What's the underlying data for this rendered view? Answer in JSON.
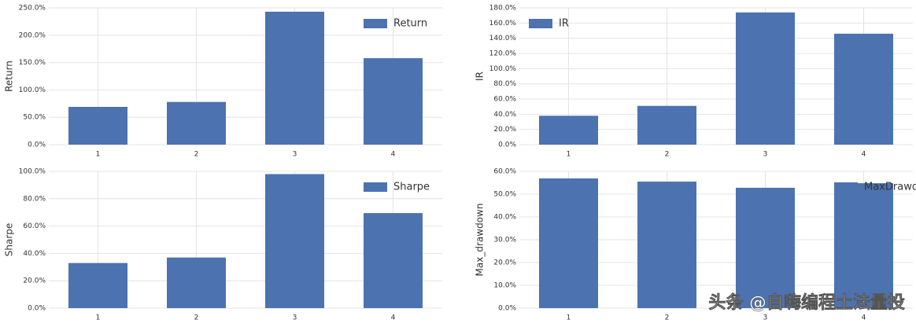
{
  "chart_data": [
    {
      "type": "bar",
      "ylabel": "Return",
      "categories": [
        "1",
        "2",
        "3",
        "4"
      ],
      "series": [
        {
          "name": "Return",
          "color": "#4c72b0",
          "values": [
            69,
            78,
            243,
            158
          ]
        }
      ],
      "ylim": [
        0,
        250
      ],
      "yticks": [
        {
          "value": 0,
          "label": "0.0%"
        },
        {
          "value": 50,
          "label": "50.0%"
        },
        {
          "value": 100,
          "label": "100.0%"
        },
        {
          "value": 150,
          "label": "150.0%"
        },
        {
          "value": 200,
          "label": "200.0%"
        },
        {
          "value": 250,
          "label": "250.0%"
        }
      ],
      "grid": true,
      "legend": "upper right"
    },
    {
      "type": "bar",
      "ylabel": "IR",
      "categories": [
        "1",
        "2",
        "3",
        "4"
      ],
      "series": [
        {
          "name": "IR",
          "color": "#4c72b0",
          "values": [
            38,
            51,
            174,
            146
          ]
        }
      ],
      "ylim": [
        0,
        180
      ],
      "yticks": [
        {
          "value": 0,
          "label": "0.0%"
        },
        {
          "value": 20,
          "label": "20.0%"
        },
        {
          "value": 40,
          "label": "40.0%"
        },
        {
          "value": 60,
          "label": "60.0%"
        },
        {
          "value": 80,
          "label": "80.0%"
        },
        {
          "value": 100,
          "label": "100.0%"
        },
        {
          "value": 120,
          "label": "120.0%"
        },
        {
          "value": 140,
          "label": "140.0%"
        },
        {
          "value": 160,
          "label": "160.0%"
        },
        {
          "value": 180,
          "label": "180.0%"
        }
      ],
      "grid": true,
      "legend": "upper left"
    },
    {
      "type": "bar",
      "ylabel": "Sharpe",
      "categories": [
        "1",
        "2",
        "3",
        "4"
      ],
      "series": [
        {
          "name": "Sharpe",
          "color": "#4c72b0",
          "values": [
            33,
            37,
            98,
            69.5
          ]
        }
      ],
      "ylim": [
        0,
        100
      ],
      "yticks": [
        {
          "value": 0,
          "label": "0.0%"
        },
        {
          "value": 20,
          "label": "20.0%"
        },
        {
          "value": 40,
          "label": "40.0%"
        },
        {
          "value": 60,
          "label": "60.0%"
        },
        {
          "value": 80,
          "label": "80.0%"
        },
        {
          "value": 100,
          "label": "100.0%"
        }
      ],
      "grid": true,
      "legend": "upper right"
    },
    {
      "type": "bar",
      "ylabel": "Max_drawdown",
      "categories": [
        "1",
        "2",
        "3",
        "4"
      ],
      "series": [
        {
          "name": "MaxDrawdown",
          "color": "#4c72b0",
          "values": [
            56.9,
            55.5,
            52.8,
            54.8
          ]
        }
      ],
      "ylim": [
        0,
        60
      ],
      "yticks": [
        {
          "value": 0,
          "label": "0.0%"
        },
        {
          "value": 10,
          "label": "10.0%"
        },
        {
          "value": 20,
          "label": "20.0%"
        },
        {
          "value": 30,
          "label": "30.0%"
        },
        {
          "value": 40,
          "label": "40.0%"
        },
        {
          "value": 50,
          "label": "50.0%"
        },
        {
          "value": 60,
          "label": "60.0%"
        }
      ],
      "grid": true,
      "legend": "upper right"
    }
  ],
  "watermark": "头条 @自嗨编程土法量投"
}
